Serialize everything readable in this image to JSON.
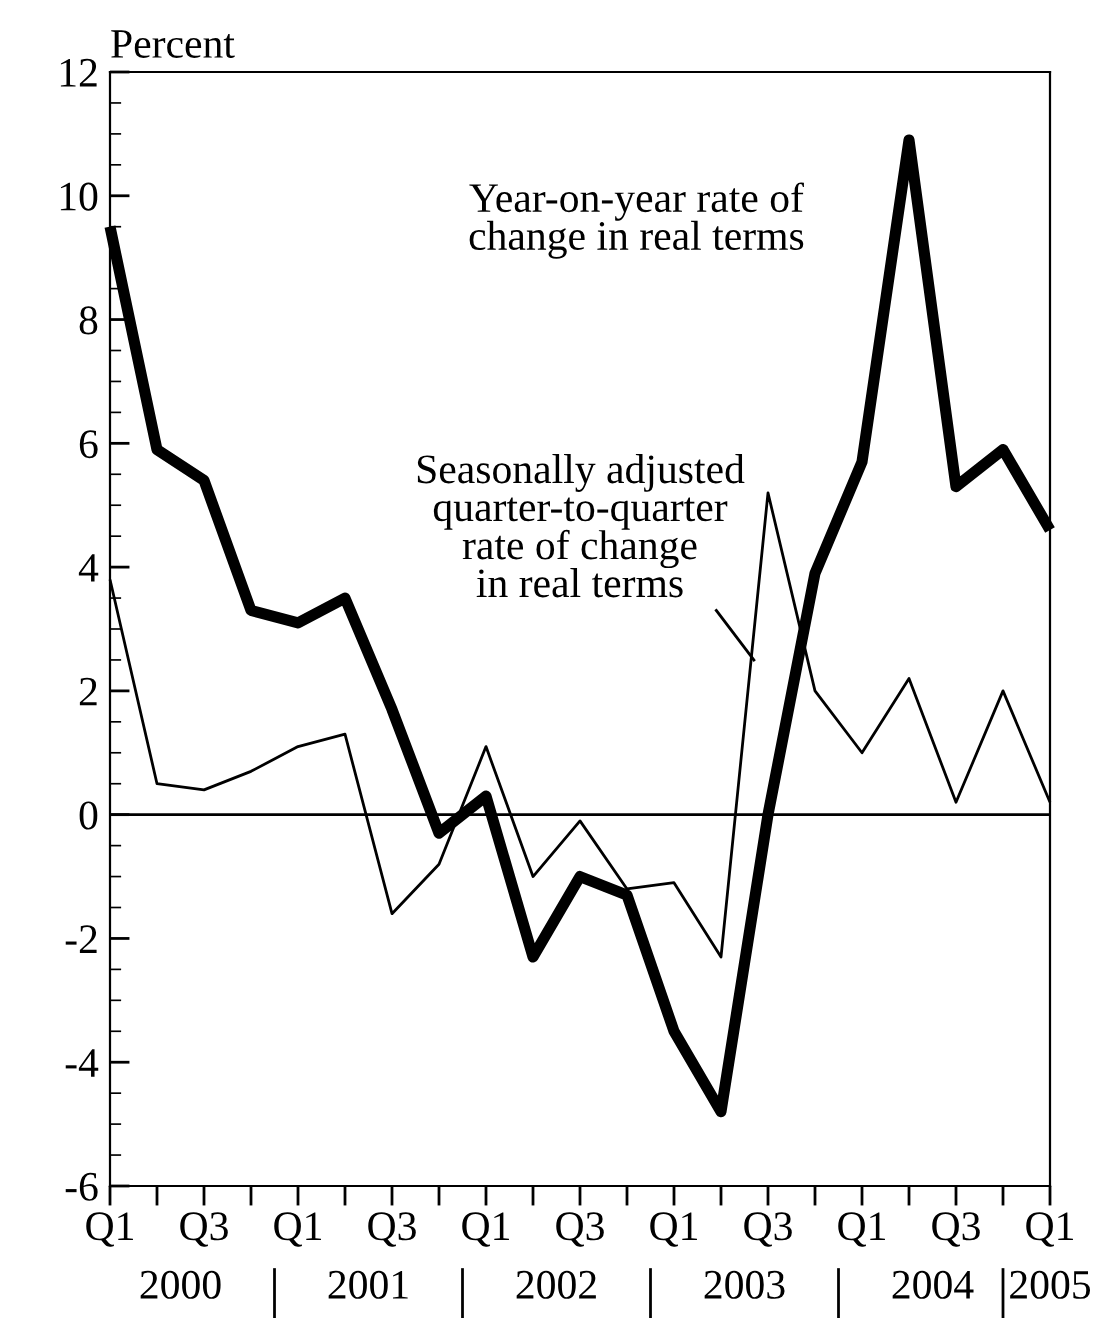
{
  "chart_data": {
    "type": "line",
    "ylabel": "Percent",
    "categories": [
      "Q1",
      null,
      "Q3",
      null,
      "Q1",
      null,
      "Q3",
      null,
      "Q1",
      null,
      "Q3",
      null,
      "Q1",
      null,
      "Q3",
      null,
      "Q1",
      null,
      "Q3",
      null,
      "Q1"
    ],
    "series": [
      {
        "name": "Year-on-year rate of\nchange in real terms",
        "color": "#000000",
        "values": [
          9.5,
          5.9,
          5.4,
          3.3,
          3.1,
          3.5,
          1.7,
          -0.3,
          0.3,
          -2.3,
          -1.0,
          -1.3,
          -3.5,
          -4.8,
          0.0,
          3.9,
          5.7,
          10.9,
          5.3,
          5.9,
          4.6
        ]
      },
      {
        "name": "Seasonally adjusted\nquarter-to-quarter\nrate of change\nin real terms",
        "color": "#000000",
        "values": [
          3.8,
          0.5,
          0.4,
          0.7,
          1.1,
          1.3,
          -1.6,
          -0.8,
          1.1,
          -1.0,
          -0.1,
          -1.2,
          -1.1,
          -2.3,
          5.2,
          2.0,
          1.0,
          2.2,
          0.2,
          2.0,
          0.2
        ]
      }
    ],
    "ylim": [
      -6,
      12
    ],
    "yticks": [
      -6,
      -4,
      -2,
      0,
      2,
      4,
      6,
      8,
      10,
      12
    ],
    "ref_lines": [
      {
        "axis": "y",
        "value": 0,
        "color": "#000000"
      }
    ],
    "annotations": [
      "2000",
      "2001",
      "2002",
      "2003",
      "2004",
      "2005"
    ],
    "grid": false,
    "legend": false,
    "marker": "none",
    "line_style": "solid"
  }
}
